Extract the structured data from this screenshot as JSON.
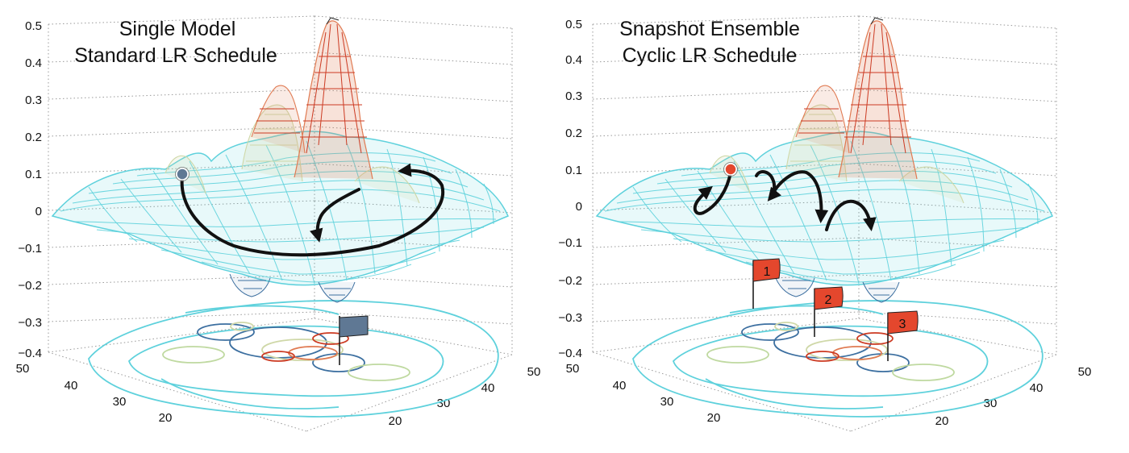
{
  "panels": [
    {
      "title_line1": "Single Model",
      "title_line2": "Standard LR Schedule",
      "z_ticks": [
        "0.5",
        "0.4",
        "0.3",
        "0.2",
        "0.1",
        "0",
        "−0.1",
        "−0.2",
        "−0.3",
        "−0.4"
      ],
      "y_ticks": [
        "50",
        "40",
        "30",
        "20"
      ],
      "x_ticks": [
        "20",
        "30",
        "40",
        "50"
      ],
      "marker_color": "#5f7894",
      "flag_color": "#5f7894",
      "flags": [
        ""
      ]
    },
    {
      "title_line1": "Snapshot Ensemble",
      "title_line2": "Cyclic LR Schedule",
      "z_ticks": [
        "0.5",
        "0.4",
        "0.3",
        "0.2",
        "0.1",
        "0",
        "−0.1",
        "−0.2",
        "−0.3",
        "−0.4"
      ],
      "y_ticks": [
        "50",
        "40",
        "30",
        "20"
      ],
      "x_ticks": [
        "20",
        "30",
        "40",
        "50"
      ],
      "marker_color": "#e4472d",
      "flag_color": "#e4472d",
      "flags": [
        "1",
        "2",
        "3"
      ]
    }
  ],
  "colors": {
    "mesh": "#5ed1dc",
    "mesh_mid": "#cfd8a8",
    "mesh_high": "#e07a52",
    "mesh_peak": "#cc3a22",
    "mesh_low": "#3c6fa0",
    "arrow": "#111111",
    "grid": "#999999"
  }
}
